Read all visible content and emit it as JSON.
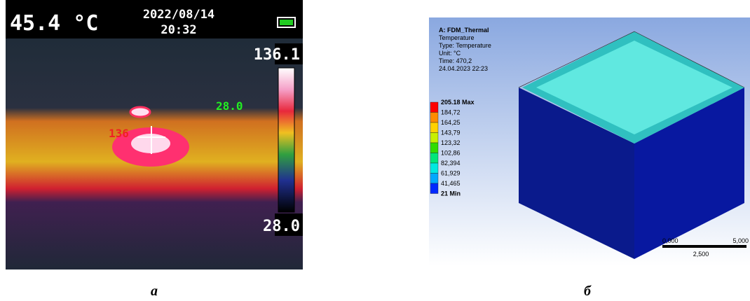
{
  "panel_a": {
    "caption": "а",
    "temperature": "45.4 °C",
    "date": "2022/08/14",
    "time": "20:32",
    "scale_max": "136.1",
    "scale_min": "28.0",
    "spot_min": "28.0",
    "spot_max": "136"
  },
  "panel_b": {
    "caption": "б",
    "title": "A: FDM_Thermal",
    "info": [
      "Temperature",
      "Type: Temperature",
      "Unit: °C",
      "Time: 470,2",
      "24.04.2023 22:23"
    ],
    "legend": [
      "205.18 Max",
      "184,72",
      "164,25",
      "143,79",
      "123,32",
      "102,86",
      "82,394",
      "61,929",
      "41,465",
      "21 Min"
    ],
    "legend_colors": [
      "#ff0000",
      "#ff8c00",
      "#ffd200",
      "#c8f000",
      "#32dc00",
      "#00e67a",
      "#00e8e0",
      "#00a8ff",
      "#0028ff"
    ],
    "scale_bar": [
      "0,000",
      "5,000",
      "2,500"
    ]
  }
}
